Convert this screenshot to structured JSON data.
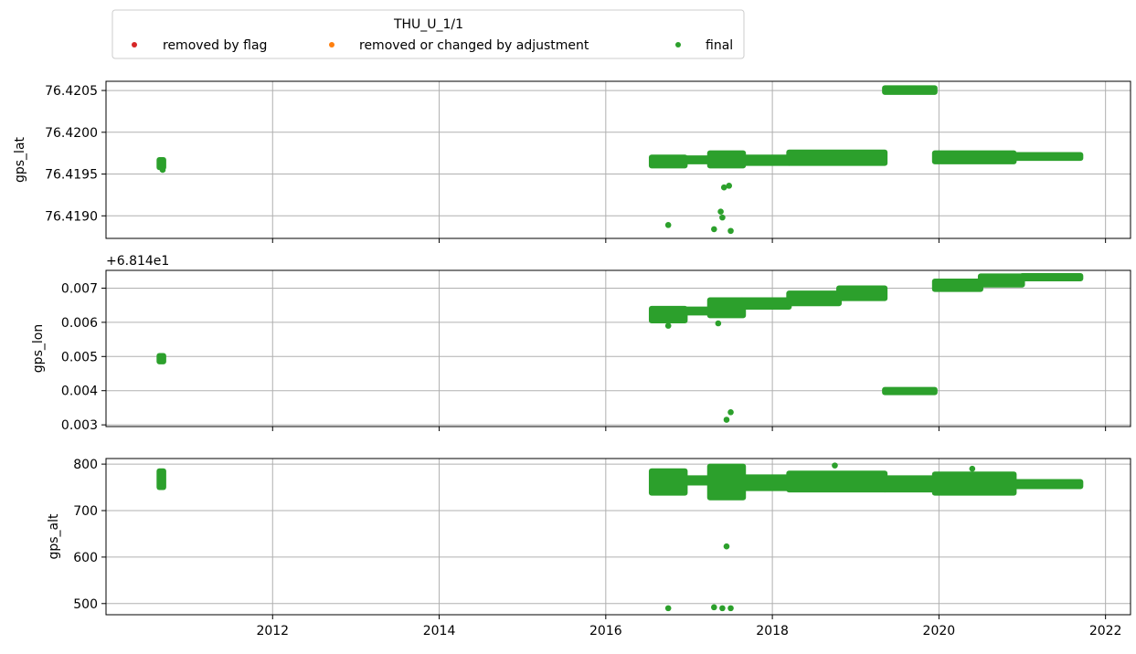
{
  "legend": {
    "title": "THU_U_1/1",
    "entries": [
      {
        "label": "removed by flag",
        "color": "#d62728"
      },
      {
        "label": "removed or changed by adjustment",
        "color": "#ff7f0e"
      },
      {
        "label": "final",
        "color": "#2ca02c"
      }
    ]
  },
  "chart_data": [
    {
      "type": "scatter",
      "ylabel": "gps_lat",
      "xlim": [
        2010.0,
        2022.3
      ],
      "ylim": [
        76.41873,
        76.42061
      ],
      "y_ticks": [
        76.419,
        76.4195,
        76.42,
        76.4205
      ],
      "y_tick_labels": [
        "76.4190",
        "76.4195",
        "76.4200",
        "76.4205"
      ],
      "offset_text": "",
      "show_x_tick_labels": false,
      "grid": true,
      "bands": [
        {
          "x": [
            2010.64,
            2010.69
          ],
          "y": [
            76.41958,
            76.41967
          ]
        },
        {
          "x": [
            2016.55,
            2016.95
          ],
          "y": [
            76.4196,
            76.4197
          ]
        },
        {
          "x": [
            2016.95,
            2017.25
          ],
          "y": [
            76.41965,
            76.41969
          ]
        },
        {
          "x": [
            2017.25,
            2017.65
          ],
          "y": [
            76.4196,
            76.41975
          ]
        },
        {
          "x": [
            2017.65,
            2018.2
          ],
          "y": [
            76.41963,
            76.4197
          ]
        },
        {
          "x": [
            2018.2,
            2019.35
          ],
          "y": [
            76.41963,
            76.41976
          ]
        },
        {
          "x": [
            2019.35,
            2019.95
          ],
          "y": [
            76.42048,
            76.42053
          ]
        },
        {
          "x": [
            2019.95,
            2020.9
          ],
          "y": [
            76.41965,
            76.41975
          ]
        },
        {
          "x": [
            2020.9,
            2021.7
          ],
          "y": [
            76.41969,
            76.41973
          ]
        }
      ],
      "points": [
        {
          "x": 2010.68,
          "y": 76.41955
        },
        {
          "x": 2016.75,
          "y": 76.41889
        },
        {
          "x": 2017.3,
          "y": 76.41884
        },
        {
          "x": 2017.38,
          "y": 76.41905
        },
        {
          "x": 2017.4,
          "y": 76.41898
        },
        {
          "x": 2017.42,
          "y": 76.41934
        },
        {
          "x": 2017.48,
          "y": 76.41936
        },
        {
          "x": 2017.5,
          "y": 76.41882
        }
      ]
    },
    {
      "type": "scatter",
      "ylabel": "gps_lon",
      "xlim": [
        2010.0,
        2022.3
      ],
      "ylim": [
        0.00295,
        0.00752
      ],
      "y_ticks": [
        0.003,
        0.004,
        0.005,
        0.006,
        0.007
      ],
      "y_tick_labels": [
        "0.003",
        "0.004",
        "0.005",
        "0.006",
        "0.007"
      ],
      "offset_text": "+6.814e1",
      "show_x_tick_labels": false,
      "grid": true,
      "bands": [
        {
          "x": [
            2010.64,
            2010.69
          ],
          "y": [
            0.00485,
            0.00502
          ]
        },
        {
          "x": [
            2016.55,
            2016.95
          ],
          "y": [
            0.00605,
            0.0064
          ]
        },
        {
          "x": [
            2016.95,
            2017.25
          ],
          "y": [
            0.00628,
            0.00638
          ]
        },
        {
          "x": [
            2017.25,
            2017.65
          ],
          "y": [
            0.0062,
            0.00665
          ]
        },
        {
          "x": [
            2017.65,
            2018.2
          ],
          "y": [
            0.00645,
            0.00665
          ]
        },
        {
          "x": [
            2018.2,
            2018.8
          ],
          "y": [
            0.00655,
            0.00685
          ]
        },
        {
          "x": [
            2018.8,
            2019.35
          ],
          "y": [
            0.0067,
            0.007
          ]
        },
        {
          "x": [
            2019.35,
            2019.95
          ],
          "y": [
            0.00397,
            0.00403
          ]
        },
        {
          "x": [
            2019.95,
            2020.5
          ],
          "y": [
            0.00697,
            0.0072
          ]
        },
        {
          "x": [
            2020.5,
            2021.0
          ],
          "y": [
            0.0071,
            0.00735
          ]
        },
        {
          "x": [
            2021.0,
            2021.7
          ],
          "y": [
            0.00728,
            0.00736
          ]
        }
      ],
      "points": [
        {
          "x": 2016.75,
          "y": 0.0059
        },
        {
          "x": 2017.35,
          "y": 0.00597
        },
        {
          "x": 2017.45,
          "y": 0.00315
        },
        {
          "x": 2017.5,
          "y": 0.00337
        }
      ]
    },
    {
      "type": "scatter",
      "ylabel": "gps_alt",
      "xlim": [
        2010.0,
        2022.3
      ],
      "ylim": [
        476,
        812
      ],
      "y_ticks": [
        500,
        600,
        700,
        800
      ],
      "y_tick_labels": [
        "500",
        "600",
        "700",
        "800"
      ],
      "offset_text": "",
      "show_x_tick_labels": true,
      "x_ticks": [
        2012,
        2014,
        2016,
        2018,
        2020,
        2022
      ],
      "x_tick_labels": [
        "2012",
        "2014",
        "2016",
        "2018",
        "2020",
        "2022"
      ],
      "grid": true,
      "bands": [
        {
          "x": [
            2010.64,
            2010.69
          ],
          "y": [
            750,
            785
          ]
        },
        {
          "x": [
            2016.55,
            2016.95
          ],
          "y": [
            738,
            785
          ]
        },
        {
          "x": [
            2016.95,
            2017.25
          ],
          "y": [
            760,
            770
          ]
        },
        {
          "x": [
            2017.25,
            2017.65
          ],
          "y": [
            728,
            795
          ]
        },
        {
          "x": [
            2017.65,
            2018.2
          ],
          "y": [
            748,
            772
          ]
        },
        {
          "x": [
            2018.2,
            2019.35
          ],
          "y": [
            745,
            780
          ]
        },
        {
          "x": [
            2019.35,
            2019.95
          ],
          "y": [
            745,
            770
          ]
        },
        {
          "x": [
            2019.95,
            2020.9
          ],
          "y": [
            738,
            778
          ]
        },
        {
          "x": [
            2020.9,
            2021.7
          ],
          "y": [
            752,
            762
          ]
        }
      ],
      "points": [
        {
          "x": 2016.75,
          "y": 490
        },
        {
          "x": 2017.3,
          "y": 492
        },
        {
          "x": 2017.4,
          "y": 490
        },
        {
          "x": 2017.45,
          "y": 623
        },
        {
          "x": 2017.5,
          "y": 490
        },
        {
          "x": 2018.75,
          "y": 797
        },
        {
          "x": 2020.4,
          "y": 790
        }
      ]
    }
  ]
}
